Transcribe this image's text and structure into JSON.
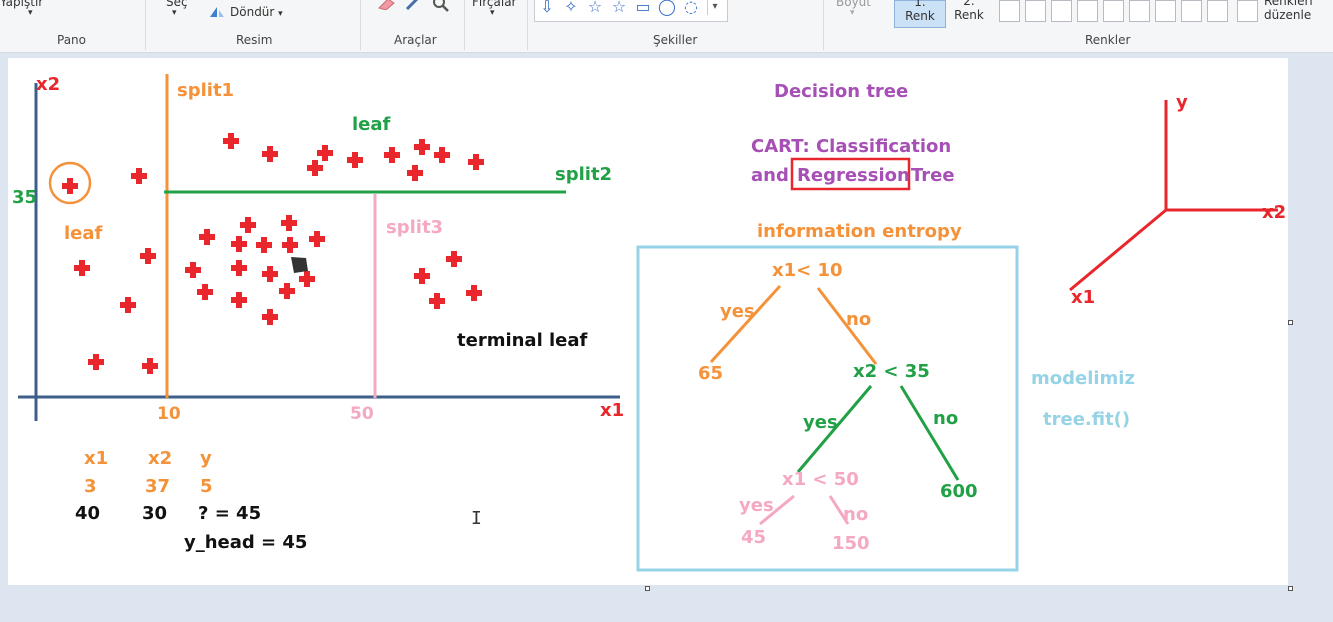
{
  "ribbon": {
    "paste": "Yapıştır",
    "select": "Seç",
    "rotate": "Döndür",
    "brushes": "Fırçalar",
    "size": "Boyut",
    "color1_a": "1.",
    "color1_b": "Renk",
    "color2_a": "2.",
    "color2_b": "Renk",
    "edit_colors_a": "Renkleri",
    "edit_colors_b": "düzenle",
    "groups": {
      "clipboard": "Pano",
      "image": "Resim",
      "tools": "Araçlar",
      "shapes": "Şekiller",
      "colors": "Renkler"
    },
    "shape_glyphs": [
      "⇩",
      "✧",
      "☆",
      "☆",
      "▭",
      "◯",
      "◌"
    ],
    "dropdown_arrow": "▾"
  },
  "drawing": {
    "colors": {
      "axis": "#3e5f8a",
      "red": "#e8262b",
      "orange": "#f4923a",
      "green": "#21a046",
      "pink": "#f4a9c1",
      "purple": "#a64fb5",
      "lightblue": "#97d3e6",
      "black": "#111111"
    },
    "scatter": {
      "axis_x_label": "x1",
      "axis_y_label": "x2",
      "tick_x_10": "10",
      "tick_x_50": "50",
      "tick_y_35": "35",
      "split1": "split1",
      "split2": "split2",
      "split3": "split3",
      "leaf_top": "leaf",
      "leaf_left": "leaf",
      "terminal_leaf": "terminal leaf"
    },
    "table": {
      "h1": "x1",
      "h2": "x2",
      "h3": "y",
      "r1c1": "3",
      "r1c2": "37",
      "r1c3": "5",
      "r2c1": "40",
      "r2c2": "30",
      "r2c3": "? = 45",
      "yhead": "y_head = 45"
    },
    "titles": {
      "decision_tree": "Decision tree",
      "cart_line1": "CART: Classification",
      "cart_and": "and",
      "cart_regression": "Regression",
      "cart_tree": "Tree",
      "info_entropy": "information entropy"
    },
    "tree": {
      "root": "x1< 10",
      "root_yes": "yes",
      "root_no": "no",
      "leaf_65": "65",
      "node2": "x2 < 35",
      "node2_yes": "yes",
      "node2_no": "no",
      "leaf_600": "600",
      "node3": "x1 < 50",
      "node3_yes": "yes",
      "node3_no": "no",
      "leaf_45": "45",
      "leaf_150": "150"
    },
    "model": {
      "modelimiz": "modelimiz",
      "tree_fit": "tree.fit()"
    },
    "axes3d": {
      "y": "y",
      "x2": "x2",
      "x1": "x1"
    },
    "cursor_glyph": "I"
  }
}
